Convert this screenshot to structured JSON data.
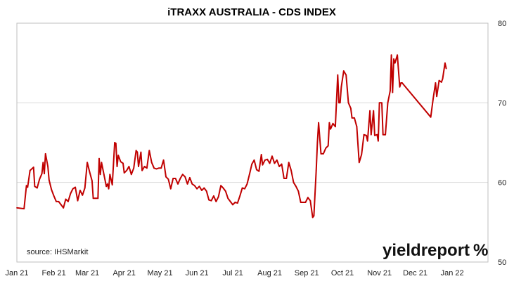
{
  "chart_data": {
    "type": "line",
    "title": "iTRAXX AUSTRALIA - CDS INDEX",
    "xlabel": "",
    "ylabel": "",
    "x_ticks": [
      "Jan 21",
      "Feb 21",
      "Mar 21",
      "Apr 21",
      "May 21",
      "Jun 21",
      "Jul 21",
      "Aug 21",
      "Sep 21",
      "Oct 21",
      "Nov 21",
      "Dec 21",
      "Jan 22"
    ],
    "y_ticks": [
      "50",
      "60",
      "70",
      "80"
    ],
    "ylim": [
      50,
      80
    ],
    "xlim": [
      "2021-01-01",
      "2022-01-31"
    ],
    "grid": "horizontal",
    "y_axis_side": "right",
    "legend": "none",
    "series": [
      {
        "color": "#c00000",
        "points": [
          [
            "2021-01-01",
            56.8
          ],
          [
            "2021-01-07",
            56.7
          ],
          [
            "2021-01-09",
            59.6
          ],
          [
            "2021-01-10",
            59.4
          ],
          [
            "2021-01-12",
            61.5
          ],
          [
            "2021-01-15",
            61.9
          ],
          [
            "2021-01-16",
            59.5
          ],
          [
            "2021-01-18",
            59.3
          ],
          [
            "2021-01-20",
            60.4
          ],
          [
            "2021-01-22",
            61.1
          ],
          [
            "2021-01-23",
            62.5
          ],
          [
            "2021-01-24",
            61.1
          ],
          [
            "2021-01-25",
            63.6
          ],
          [
            "2021-01-27",
            62.0
          ],
          [
            "2021-01-28",
            60.3
          ],
          [
            "2021-01-30",
            59.1
          ],
          [
            "2021-02-01",
            58.3
          ],
          [
            "2021-02-03",
            57.6
          ],
          [
            "2021-02-05",
            57.6
          ],
          [
            "2021-02-07",
            57.2
          ],
          [
            "2021-02-09",
            56.8
          ],
          [
            "2021-02-11",
            57.9
          ],
          [
            "2021-02-13",
            57.6
          ],
          [
            "2021-02-15",
            58.6
          ],
          [
            "2021-02-17",
            59.2
          ],
          [
            "2021-02-19",
            59.4
          ],
          [
            "2021-02-21",
            57.7
          ],
          [
            "2021-02-23",
            59.0
          ],
          [
            "2021-02-25",
            58.4
          ],
          [
            "2021-02-27",
            59.3
          ],
          [
            "2021-03-01",
            62.5
          ],
          [
            "2021-03-03",
            61.3
          ],
          [
            "2021-03-05",
            60.2
          ],
          [
            "2021-03-06",
            58.0
          ],
          [
            "2021-03-08",
            58.0
          ],
          [
            "2021-03-10",
            58.0
          ],
          [
            "2021-03-11",
            63.0
          ],
          [
            "2021-03-12",
            61.0
          ],
          [
            "2021-03-13",
            62.5
          ],
          [
            "2021-03-15",
            61.0
          ],
          [
            "2021-03-17",
            59.5
          ],
          [
            "2021-03-18",
            59.8
          ],
          [
            "2021-03-19",
            59.2
          ],
          [
            "2021-03-20",
            61.0
          ],
          [
            "2021-03-22",
            59.7
          ],
          [
            "2021-03-24",
            65.0
          ],
          [
            "2021-03-25",
            64.9
          ],
          [
            "2021-03-26",
            62.0
          ],
          [
            "2021-03-27",
            63.4
          ],
          [
            "2021-03-29",
            62.6
          ],
          [
            "2021-03-31",
            62.4
          ],
          [
            "2021-04-01",
            61.2
          ],
          [
            "2021-04-03",
            61.5
          ],
          [
            "2021-04-05",
            62.0
          ],
          [
            "2021-04-07",
            61.0
          ],
          [
            "2021-04-09",
            61.8
          ],
          [
            "2021-04-11",
            64.0
          ],
          [
            "2021-04-12",
            63.8
          ],
          [
            "2021-04-13",
            62.0
          ],
          [
            "2021-04-15",
            63.8
          ],
          [
            "2021-04-16",
            61.5
          ],
          [
            "2021-04-18",
            62.0
          ],
          [
            "2021-04-20",
            61.8
          ],
          [
            "2021-04-22",
            64.0
          ],
          [
            "2021-04-24",
            62.5
          ],
          [
            "2021-04-26",
            61.8
          ],
          [
            "2021-04-28",
            61.7
          ],
          [
            "2021-04-30",
            61.8
          ],
          [
            "2021-05-02",
            61.8
          ],
          [
            "2021-05-04",
            62.8
          ],
          [
            "2021-05-06",
            60.7
          ],
          [
            "2021-05-08",
            60.4
          ],
          [
            "2021-05-10",
            59.2
          ],
          [
            "2021-05-12",
            60.5
          ],
          [
            "2021-05-14",
            60.5
          ],
          [
            "2021-05-16",
            59.8
          ],
          [
            "2021-05-18",
            60.5
          ],
          [
            "2021-05-20",
            61.0
          ],
          [
            "2021-05-22",
            60.7
          ],
          [
            "2021-05-24",
            59.8
          ],
          [
            "2021-05-26",
            60.6
          ],
          [
            "2021-05-28",
            59.8
          ],
          [
            "2021-05-30",
            59.6
          ],
          [
            "2021-06-01",
            59.2
          ],
          [
            "2021-06-03",
            59.5
          ],
          [
            "2021-06-05",
            59.0
          ],
          [
            "2021-06-07",
            59.3
          ],
          [
            "2021-06-09",
            58.9
          ],
          [
            "2021-06-11",
            57.8
          ],
          [
            "2021-06-13",
            57.7
          ],
          [
            "2021-06-15",
            58.3
          ],
          [
            "2021-06-17",
            57.6
          ],
          [
            "2021-06-19",
            58.2
          ],
          [
            "2021-06-21",
            59.6
          ],
          [
            "2021-06-23",
            59.3
          ],
          [
            "2021-06-25",
            58.9
          ],
          [
            "2021-06-27",
            58.0
          ],
          [
            "2021-06-29",
            57.6
          ],
          [
            "2021-07-01",
            57.2
          ],
          [
            "2021-07-03",
            57.5
          ],
          [
            "2021-07-05",
            57.4
          ],
          [
            "2021-07-07",
            58.3
          ],
          [
            "2021-07-09",
            59.3
          ],
          [
            "2021-07-11",
            59.2
          ],
          [
            "2021-07-13",
            59.8
          ],
          [
            "2021-07-15",
            61.0
          ],
          [
            "2021-07-17",
            62.3
          ],
          [
            "2021-07-19",
            62.8
          ],
          [
            "2021-07-21",
            61.6
          ],
          [
            "2021-07-23",
            61.4
          ],
          [
            "2021-07-25",
            63.5
          ],
          [
            "2021-07-26",
            62.2
          ],
          [
            "2021-07-28",
            62.8
          ],
          [
            "2021-07-30",
            62.9
          ],
          [
            "2021-08-01",
            62.4
          ],
          [
            "2021-08-03",
            63.3
          ],
          [
            "2021-08-05",
            62.4
          ],
          [
            "2021-08-07",
            62.8
          ],
          [
            "2021-08-09",
            62.0
          ],
          [
            "2021-08-11",
            62.3
          ],
          [
            "2021-08-13",
            60.5
          ],
          [
            "2021-08-15",
            60.5
          ],
          [
            "2021-08-17",
            62.5
          ],
          [
            "2021-08-19",
            61.5
          ],
          [
            "2021-08-21",
            60.0
          ],
          [
            "2021-08-23",
            59.5
          ],
          [
            "2021-08-25",
            58.9
          ],
          [
            "2021-08-27",
            57.5
          ],
          [
            "2021-08-29",
            57.5
          ],
          [
            "2021-08-31",
            57.5
          ],
          [
            "2021-09-02",
            58.1
          ],
          [
            "2021-09-04",
            57.7
          ],
          [
            "2021-09-06",
            55.6
          ],
          [
            "2021-09-07",
            55.8
          ],
          [
            "2021-09-09",
            61.5
          ],
          [
            "2021-09-10",
            65.0
          ],
          [
            "2021-09-11",
            67.5
          ],
          [
            "2021-09-13",
            63.6
          ],
          [
            "2021-09-15",
            63.6
          ],
          [
            "2021-09-17",
            64.3
          ],
          [
            "2021-09-19",
            64.6
          ],
          [
            "2021-09-20",
            67.5
          ],
          [
            "2021-09-21",
            66.7
          ],
          [
            "2021-09-23",
            67.4
          ],
          [
            "2021-09-25",
            67.0
          ],
          [
            "2021-09-27",
            73.5
          ],
          [
            "2021-09-28",
            70.0
          ],
          [
            "2021-09-29",
            70.0
          ],
          [
            "2021-09-30",
            72.0
          ],
          [
            "2021-10-02",
            74.0
          ],
          [
            "2021-10-04",
            73.5
          ],
          [
            "2021-10-06",
            70.0
          ],
          [
            "2021-10-08",
            69.3
          ],
          [
            "2021-10-09",
            68.1
          ],
          [
            "2021-10-11",
            68.1
          ],
          [
            "2021-10-13",
            67.0
          ],
          [
            "2021-10-15",
            62.5
          ],
          [
            "2021-10-17",
            63.5
          ],
          [
            "2021-10-19",
            66.0
          ],
          [
            "2021-10-21",
            65.9
          ],
          [
            "2021-10-22",
            65.2
          ],
          [
            "2021-10-24",
            69.0
          ],
          [
            "2021-10-25",
            66.0
          ],
          [
            "2021-10-27",
            69.0
          ],
          [
            "2021-10-28",
            65.9
          ],
          [
            "2021-10-30",
            66.0
          ],
          [
            "2021-10-31",
            65.2
          ],
          [
            "2021-11-01",
            70.0
          ],
          [
            "2021-11-03",
            70.0
          ],
          [
            "2021-11-04",
            66.0
          ],
          [
            "2021-11-06",
            66.0
          ],
          [
            "2021-11-08",
            70.0
          ],
          [
            "2021-11-10",
            71.5
          ],
          [
            "2021-11-11",
            76.0
          ],
          [
            "2021-11-12",
            71.3
          ],
          [
            "2021-11-13",
            75.5
          ],
          [
            "2021-11-14",
            75.0
          ],
          [
            "2021-11-16",
            76.0
          ],
          [
            "2021-11-18",
            72.0
          ],
          [
            "2021-11-19",
            72.5
          ],
          [
            "2021-11-20",
            72.5
          ],
          [
            "2021-12-14",
            68.2
          ],
          [
            "2021-12-16",
            70.5
          ],
          [
            "2021-12-18",
            72.5
          ],
          [
            "2021-12-19",
            70.8
          ],
          [
            "2021-12-21",
            72.8
          ],
          [
            "2021-12-23",
            72.6
          ],
          [
            "2021-12-24",
            73.0
          ],
          [
            "2021-12-26",
            75.0
          ],
          [
            "2021-12-27",
            74.3
          ]
        ]
      }
    ],
    "annotations": [
      "source: IHSMarkit"
    ]
  },
  "branding": {
    "logo_word": "yieldreport",
    "logo_symbol": "%",
    "logo_symbol_color": "#3a7d2c",
    "logo_accent_color": "#c00000"
  },
  "colors": {
    "line": "#c00000",
    "grid": "#d9d9d9",
    "axis": "#bfbfbf"
  }
}
